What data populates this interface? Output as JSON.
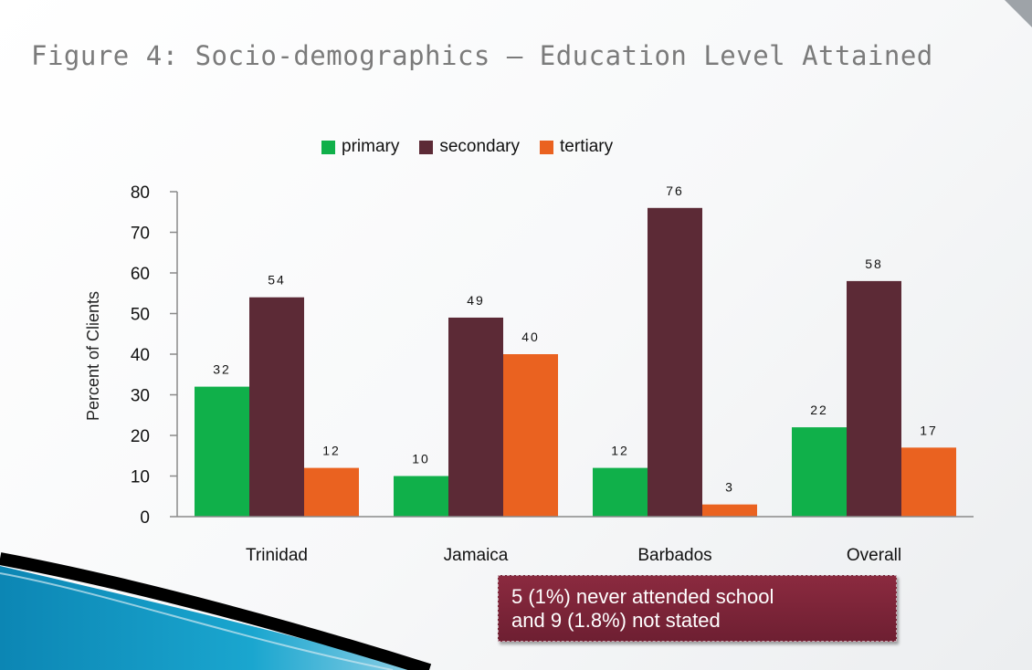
{
  "slide": {
    "title": "Figure 4: Socio-demographics – Education Level Attained",
    "note_line1": "5 (1%) never attended school",
    "note_line2": "and 9 (1.8%) not stated"
  },
  "chart_data": {
    "type": "bar",
    "categories": [
      "Trinidad",
      "Jamaica",
      "Barbados",
      "Overall"
    ],
    "series": [
      {
        "name": "primary",
        "values": [
          32,
          10,
          12,
          22
        ],
        "color": "#10b04a"
      },
      {
        "name": "secondary",
        "values": [
          54,
          49,
          76,
          58
        ],
        "color": "#5c2a36"
      },
      {
        "name": "tertiary",
        "values": [
          12,
          40,
          3,
          17
        ],
        "color": "#ea6220"
      }
    ],
    "ylabel": "Percent of Clients",
    "ylim": [
      0,
      80
    ],
    "yticks": [
      0,
      10,
      20,
      30,
      40,
      50,
      60,
      70,
      80
    ],
    "grid": false,
    "legend": "top"
  }
}
